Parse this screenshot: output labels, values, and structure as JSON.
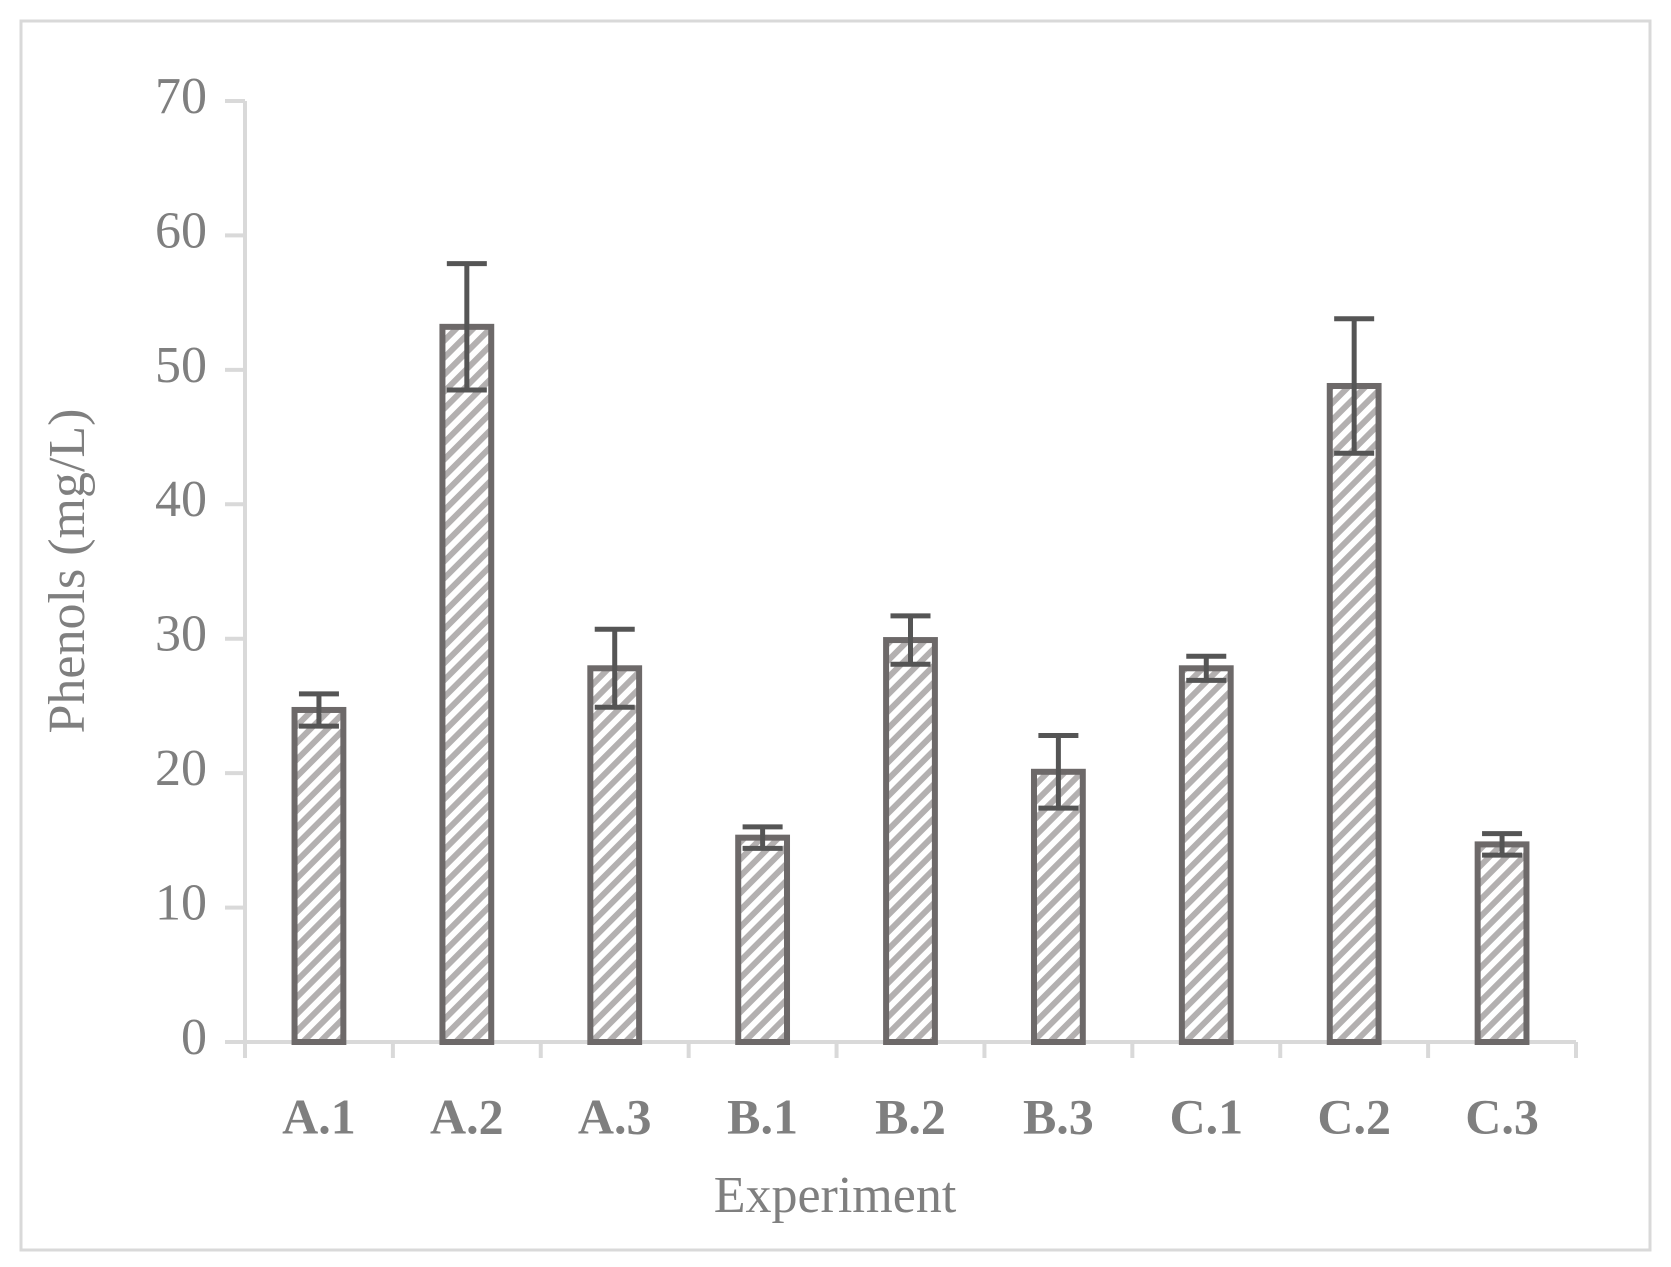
{
  "chart_data": {
    "type": "bar",
    "x_label": "Experiment",
    "y_label": "Phenols (mg/L)",
    "categories": [
      "A.1",
      "A.2",
      "A.3",
      "B.1",
      "B.2",
      "B.3",
      "C.1",
      "C.2",
      "C.3"
    ],
    "values": [
      24.7,
      53.2,
      27.8,
      15.2,
      29.9,
      20.1,
      27.8,
      48.8,
      14.7
    ],
    "errors": [
      1.2,
      4.7,
      2.9,
      0.8,
      1.8,
      2.7,
      0.9,
      5.0,
      0.8
    ],
    "color": "#6d6969",
    "ylim": [
      0,
      70
    ],
    "yticks": [
      0,
      10,
      20,
      30,
      40,
      50,
      60,
      70
    ],
    "grid": false
  }
}
